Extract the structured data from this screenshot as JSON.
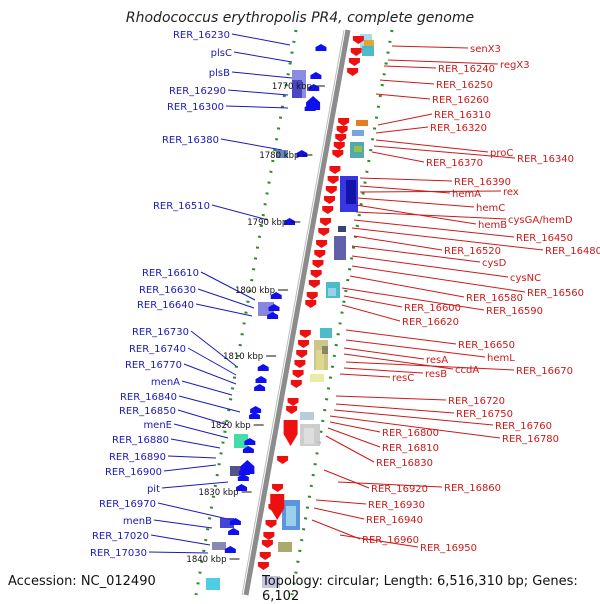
{
  "title": "Rhodococcus erythropolis PR4, complete genome",
  "footer": {
    "accession": "Accession: NC_012490",
    "topology": "Topology: circular; Length: 6,516,310 bp; Genes: 6,102"
  },
  "colors": {
    "left_strand_label": "#1a1ab8",
    "right_strand_label": "#cc1a1a",
    "left_arrow": "#1010ee",
    "right_arrow": "#ee1010",
    "backbone": "#8c8c8c",
    "tick": "#2e8b2e"
  },
  "scale_ticks": [
    "1770 kbp",
    "1780 kbp",
    "1790 kbp",
    "1800 kbp",
    "1810 kbp",
    "1820 kbp",
    "1830 kbp",
    "1840 kbp"
  ],
  "left_labels": [
    "RER_16230",
    "plsC",
    "plsB",
    "RER_16290",
    "RER_16300",
    "RER_16380",
    "RER_16510",
    "RER_16610",
    "RER_16630",
    "RER_16640",
    "RER_16730",
    "RER_16740",
    "RER_16770",
    "menA",
    "RER_16840",
    "RER_16850",
    "menE",
    "RER_16880",
    "RER_16890",
    "RER_16900",
    "pit",
    "RER_16970",
    "menB",
    "RER_17020",
    "RER_17030"
  ],
  "right_labels": [
    "senX3",
    "regX3",
    "RER_16240",
    "RER_16250",
    "RER_16260",
    "RER_16310",
    "RER_16320",
    "proC",
    "RER_16340",
    "RER_16370",
    "RER_16390",
    "hemA",
    "rex",
    "hemC",
    "hemB",
    "cysGA/hemD",
    "RER_16450",
    "RER_16480",
    "RER_16520",
    "cysD",
    "cysNC",
    "RER_16560",
    "RER_16580",
    "RER_16590",
    "RER_16600",
    "RER_16620",
    "RER_16650",
    "hemL",
    "resA",
    "ccdA",
    "RER_16670",
    "resB",
    "resC",
    "RER_16720",
    "RER_16750",
    "RER_16760",
    "RER_16780",
    "RER_16800",
    "RER_16810",
    "RER_16830",
    "RER_16920",
    "RER_16860",
    "RER_16930",
    "RER_16940",
    "RER_16960",
    "RER_16950"
  ]
}
